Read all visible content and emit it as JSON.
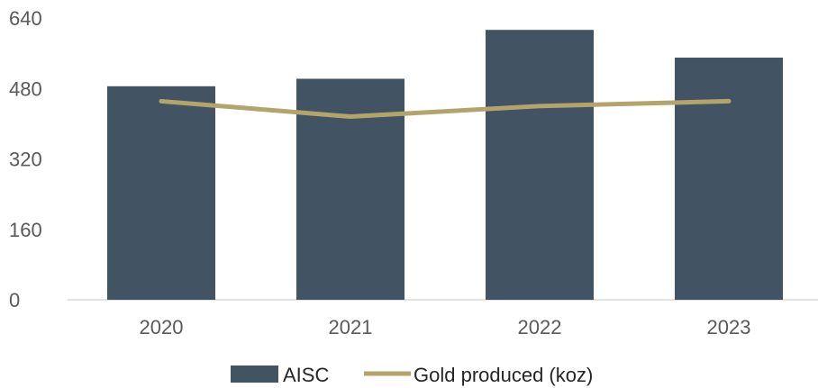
{
  "chart_data": {
    "type": "bar",
    "categories": [
      "2020",
      "2021",
      "2022",
      "2023"
    ],
    "series": [
      {
        "name": "AISC",
        "kind": "bar",
        "values": [
          485,
          502,
          613,
          550
        ],
        "color": "#425463"
      },
      {
        "name": "Gold produced (koz)",
        "kind": "line",
        "values": [
          451,
          416,
          440,
          451
        ],
        "color": "#B5A46A"
      }
    ],
    "y_ticks": [
      "0",
      "160",
      "320",
      "480",
      "640"
    ],
    "ylim": [
      0,
      640
    ],
    "grid": false,
    "legend_position": "bottom"
  }
}
